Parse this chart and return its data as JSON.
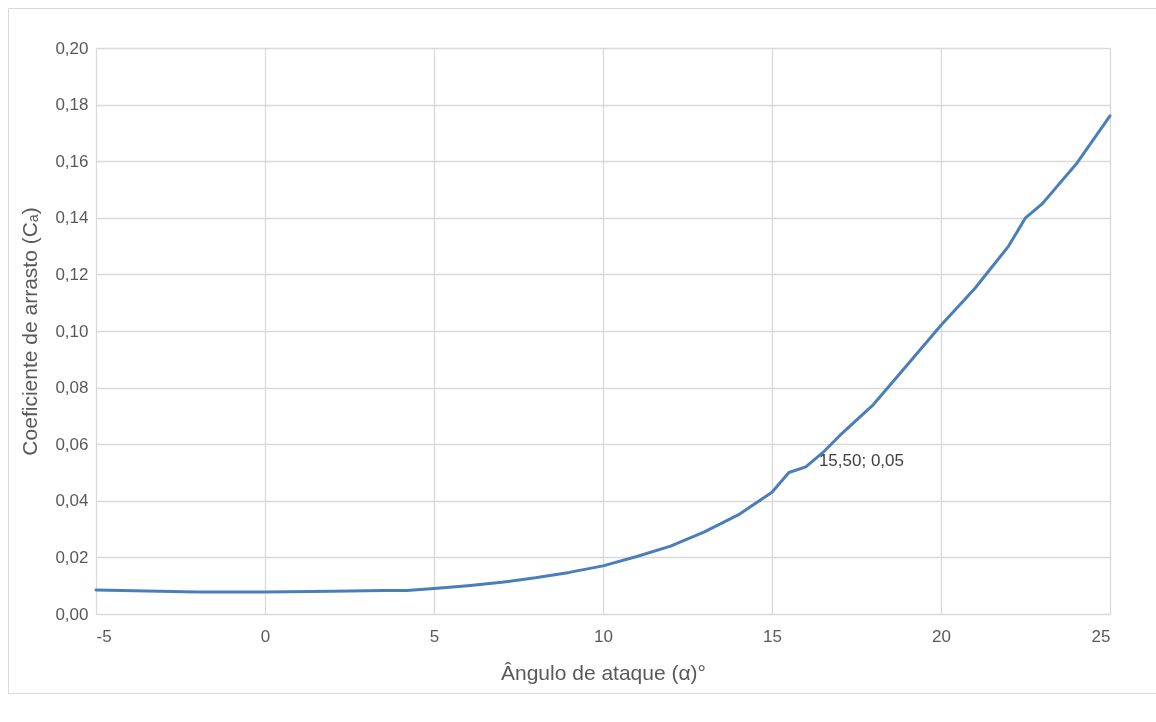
{
  "chart_data": {
    "type": "line",
    "xlabel": "Ângulo de  ataque (α)°",
    "ylabel": "Coeficiente de arrasto (Cₐ)",
    "x": [
      -5,
      -2,
      0,
      2,
      3.5,
      4.2,
      5,
      6,
      7,
      8,
      9,
      10,
      11,
      12,
      13,
      14,
      15,
      15.5,
      16,
      16.5,
      17,
      18,
      19,
      20,
      21,
      22,
      22.5,
      23,
      24,
      25
    ],
    "series": [
      {
        "color": "#4a7ebb",
        "values": [
          0.0085,
          0.0078,
          0.0078,
          0.008,
          0.0083,
          0.0083,
          0.009,
          0.01,
          0.0112,
          0.0128,
          0.0147,
          0.017,
          0.0203,
          0.024,
          0.029,
          0.035,
          0.043,
          0.05,
          0.052,
          0.057,
          0.063,
          0.074,
          0.088,
          0.102,
          0.115,
          0.13,
          0.14,
          0.145,
          0.159,
          0.176
        ]
      }
    ],
    "xlim": [
      -5,
      25
    ],
    "xticks": [
      -5,
      0,
      5,
      10,
      15,
      20,
      25
    ],
    "ylim": [
      0,
      0.2
    ],
    "yticks": [
      {
        "value": 0,
        "label": "0,00"
      },
      {
        "value": 0.02,
        "label": "0,02"
      },
      {
        "value": 0.04,
        "label": "0,04"
      },
      {
        "value": 0.06,
        "label": "0,06"
      },
      {
        "value": 0.08,
        "label": "0,08"
      },
      {
        "value": 0.1,
        "label": "0,10"
      },
      {
        "value": 0.12,
        "label": "0,12"
      },
      {
        "value": 0.14,
        "label": "0,14"
      },
      {
        "value": 0.16,
        "label": "0,16"
      },
      {
        "value": 0.18,
        "label": "0,18"
      },
      {
        "value": 0.2,
        "label": "0,20"
      }
    ],
    "grid": true,
    "marker": "none",
    "line_style": "solid",
    "annotations": [
      {
        "text": "15,50; 0,05",
        "x": 15.5,
        "y": 0.05
      }
    ]
  }
}
